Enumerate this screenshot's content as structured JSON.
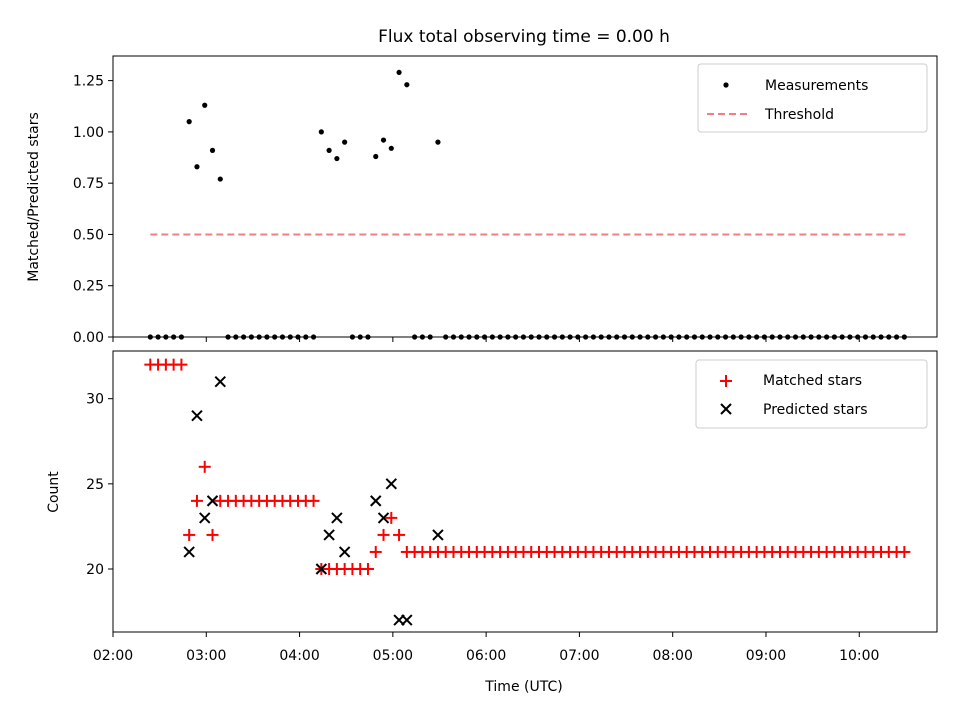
{
  "title": "Flux total observing time = 0.00 h",
  "chart_data": [
    {
      "type": "scatter",
      "ylabel": "Matched/Predicted stars",
      "xlim": [
        "02:00",
        "10:50"
      ],
      "ylim": [
        0,
        1.37
      ],
      "yticks": [
        0.0,
        0.25,
        0.5,
        0.75,
        1.0,
        1.25
      ],
      "ytick_labels": [
        "0.00",
        "0.25",
        "0.50",
        "0.75",
        "1.00",
        "1.25"
      ],
      "legend_position": "upper right",
      "legend": [
        "Measurements",
        "Threshold"
      ],
      "threshold": {
        "name": "Threshold",
        "value": 0.5,
        "x_start": "02:24",
        "x_end": "10:30",
        "color": "#f08080",
        "style": "dashed"
      },
      "measurements": {
        "name": "Measurements",
        "color": "#000000",
        "points": [
          [
            "02:24",
            0
          ],
          [
            "02:29",
            0
          ],
          [
            "02:34",
            0
          ],
          [
            "02:39",
            0
          ],
          [
            "02:44",
            0
          ],
          [
            "02:49",
            1.05
          ],
          [
            "02:54",
            0.83
          ],
          [
            "02:59",
            1.13
          ],
          [
            "03:04",
            0.91
          ],
          [
            "03:09",
            0.77
          ],
          [
            "03:14",
            0
          ],
          [
            "03:19",
            0
          ],
          [
            "03:24",
            0
          ],
          [
            "03:29",
            0
          ],
          [
            "03:34",
            0
          ],
          [
            "03:39",
            0
          ],
          [
            "03:44",
            0
          ],
          [
            "03:49",
            0
          ],
          [
            "03:54",
            0
          ],
          [
            "03:59",
            0
          ],
          [
            "04:04",
            0
          ],
          [
            "04:09",
            0
          ],
          [
            "04:14",
            1.0
          ],
          [
            "04:19",
            0.91
          ],
          [
            "04:24",
            0.87
          ],
          [
            "04:29",
            0.95
          ],
          [
            "04:34",
            0
          ],
          [
            "04:39",
            0
          ],
          [
            "04:44",
            0
          ],
          [
            "04:49",
            0.88
          ],
          [
            "04:54",
            0.96
          ],
          [
            "04:59",
            0.92
          ],
          [
            "05:04",
            1.29
          ],
          [
            "05:09",
            1.23
          ],
          [
            "05:14",
            0
          ],
          [
            "05:19",
            0
          ],
          [
            "05:24",
            0
          ],
          [
            "05:29",
            0.95
          ],
          [
            "05:34",
            0
          ],
          [
            "05:39",
            0
          ],
          [
            "05:44",
            0
          ],
          [
            "05:49",
            0
          ],
          [
            "05:54",
            0
          ],
          [
            "05:59",
            0
          ],
          [
            "06:04",
            0
          ],
          [
            "06:09",
            0
          ],
          [
            "06:14",
            0
          ],
          [
            "06:19",
            0
          ],
          [
            "06:24",
            0
          ],
          [
            "06:29",
            0
          ],
          [
            "06:34",
            0
          ],
          [
            "06:39",
            0
          ],
          [
            "06:44",
            0
          ],
          [
            "06:49",
            0
          ],
          [
            "06:54",
            0
          ],
          [
            "06:59",
            0
          ],
          [
            "07:04",
            0
          ],
          [
            "07:09",
            0
          ],
          [
            "07:14",
            0
          ],
          [
            "07:19",
            0
          ],
          [
            "07:24",
            0
          ],
          [
            "07:29",
            0
          ],
          [
            "07:34",
            0
          ],
          [
            "07:39",
            0
          ],
          [
            "07:44",
            0
          ],
          [
            "07:49",
            0
          ],
          [
            "07:54",
            0
          ],
          [
            "07:59",
            0
          ],
          [
            "08:04",
            0
          ],
          [
            "08:09",
            0
          ],
          [
            "08:14",
            0
          ],
          [
            "08:19",
            0
          ],
          [
            "08:24",
            0
          ],
          [
            "08:29",
            0
          ],
          [
            "08:34",
            0
          ],
          [
            "08:39",
            0
          ],
          [
            "08:44",
            0
          ],
          [
            "08:49",
            0
          ],
          [
            "08:54",
            0
          ],
          [
            "08:59",
            0
          ],
          [
            "09:04",
            0
          ],
          [
            "09:09",
            0
          ],
          [
            "09:14",
            0
          ],
          [
            "09:19",
            0
          ],
          [
            "09:24",
            0
          ],
          [
            "09:29",
            0
          ],
          [
            "09:34",
            0
          ],
          [
            "09:39",
            0
          ],
          [
            "09:44",
            0
          ],
          [
            "09:49",
            0
          ],
          [
            "09:54",
            0
          ],
          [
            "09:59",
            0
          ],
          [
            "10:04",
            0
          ],
          [
            "10:09",
            0
          ],
          [
            "10:14",
            0
          ],
          [
            "10:19",
            0
          ],
          [
            "10:24",
            0
          ],
          [
            "10:29",
            0
          ]
        ]
      }
    },
    {
      "type": "scatter",
      "ylabel": "Count",
      "xlabel": "Time (UTC)",
      "xlim": [
        "02:00",
        "10:50"
      ],
      "xticks": [
        "02:00",
        "03:00",
        "04:00",
        "05:00",
        "06:00",
        "07:00",
        "08:00",
        "09:00",
        "10:00"
      ],
      "ylim": [
        16.3,
        32.8
      ],
      "yticks": [
        20,
        25,
        30
      ],
      "ytick_labels": [
        "20",
        "25",
        "30"
      ],
      "legend_position": "upper right",
      "legend": [
        "Matched stars",
        "Predicted stars"
      ],
      "series": [
        {
          "name": "Matched stars",
          "marker": "plus",
          "color": "#ff0000",
          "points": [
            [
              "02:24",
              32
            ],
            [
              "02:29",
              32
            ],
            [
              "02:34",
              32
            ],
            [
              "02:39",
              32
            ],
            [
              "02:44",
              32
            ],
            [
              "02:49",
              22
            ],
            [
              "02:54",
              24
            ],
            [
              "02:59",
              26
            ],
            [
              "03:04",
              22
            ],
            [
              "03:09",
              24
            ],
            [
              "03:14",
              24
            ],
            [
              "03:19",
              24
            ],
            [
              "03:24",
              24
            ],
            [
              "03:29",
              24
            ],
            [
              "03:34",
              24
            ],
            [
              "03:39",
              24
            ],
            [
              "03:44",
              24
            ],
            [
              "03:49",
              24
            ],
            [
              "03:54",
              24
            ],
            [
              "03:59",
              24
            ],
            [
              "04:04",
              24
            ],
            [
              "04:09",
              24
            ],
            [
              "04:14",
              20
            ],
            [
              "04:19",
              20
            ],
            [
              "04:24",
              20
            ],
            [
              "04:29",
              20
            ],
            [
              "04:34",
              20
            ],
            [
              "04:39",
              20
            ],
            [
              "04:44",
              20
            ],
            [
              "04:49",
              21
            ],
            [
              "04:54",
              22
            ],
            [
              "04:59",
              23
            ],
            [
              "05:04",
              22
            ],
            [
              "05:09",
              21
            ],
            [
              "05:14",
              21
            ],
            [
              "05:19",
              21
            ],
            [
              "05:24",
              21
            ],
            [
              "05:29",
              21
            ],
            [
              "05:34",
              21
            ],
            [
              "05:39",
              21
            ],
            [
              "05:44",
              21
            ],
            [
              "05:49",
              21
            ],
            [
              "05:54",
              21
            ],
            [
              "05:59",
              21
            ],
            [
              "06:04",
              21
            ],
            [
              "06:09",
              21
            ],
            [
              "06:14",
              21
            ],
            [
              "06:19",
              21
            ],
            [
              "06:24",
              21
            ],
            [
              "06:29",
              21
            ],
            [
              "06:34",
              21
            ],
            [
              "06:39",
              21
            ],
            [
              "06:44",
              21
            ],
            [
              "06:49",
              21
            ],
            [
              "06:54",
              21
            ],
            [
              "06:59",
              21
            ],
            [
              "07:04",
              21
            ],
            [
              "07:09",
              21
            ],
            [
              "07:14",
              21
            ],
            [
              "07:19",
              21
            ],
            [
              "07:24",
              21
            ],
            [
              "07:29",
              21
            ],
            [
              "07:34",
              21
            ],
            [
              "07:39",
              21
            ],
            [
              "07:44",
              21
            ],
            [
              "07:49",
              21
            ],
            [
              "07:54",
              21
            ],
            [
              "07:59",
              21
            ],
            [
              "08:04",
              21
            ],
            [
              "08:09",
              21
            ],
            [
              "08:14",
              21
            ],
            [
              "08:19",
              21
            ],
            [
              "08:24",
              21
            ],
            [
              "08:29",
              21
            ],
            [
              "08:34",
              21
            ],
            [
              "08:39",
              21
            ],
            [
              "08:44",
              21
            ],
            [
              "08:49",
              21
            ],
            [
              "08:54",
              21
            ],
            [
              "08:59",
              21
            ],
            [
              "09:04",
              21
            ],
            [
              "09:09",
              21
            ],
            [
              "09:14",
              21
            ],
            [
              "09:19",
              21
            ],
            [
              "09:24",
              21
            ],
            [
              "09:29",
              21
            ],
            [
              "09:34",
              21
            ],
            [
              "09:39",
              21
            ],
            [
              "09:44",
              21
            ],
            [
              "09:49",
              21
            ],
            [
              "09:54",
              21
            ],
            [
              "09:59",
              21
            ],
            [
              "10:04",
              21
            ],
            [
              "10:09",
              21
            ],
            [
              "10:14",
              21
            ],
            [
              "10:19",
              21
            ],
            [
              "10:24",
              21
            ],
            [
              "10:29",
              21
            ]
          ]
        },
        {
          "name": "Predicted stars",
          "marker": "x",
          "color": "#000000",
          "points": [
            [
              "02:49",
              21
            ],
            [
              "02:54",
              29
            ],
            [
              "02:59",
              23
            ],
            [
              "03:04",
              24
            ],
            [
              "03:09",
              31
            ],
            [
              "04:14",
              20
            ],
            [
              "04:19",
              22
            ],
            [
              "04:24",
              23
            ],
            [
              "04:29",
              21
            ],
            [
              "04:49",
              24
            ],
            [
              "04:54",
              23
            ],
            [
              "04:59",
              25
            ],
            [
              "05:04",
              17
            ],
            [
              "05:09",
              17
            ],
            [
              "05:29",
              22
            ]
          ]
        }
      ]
    }
  ]
}
